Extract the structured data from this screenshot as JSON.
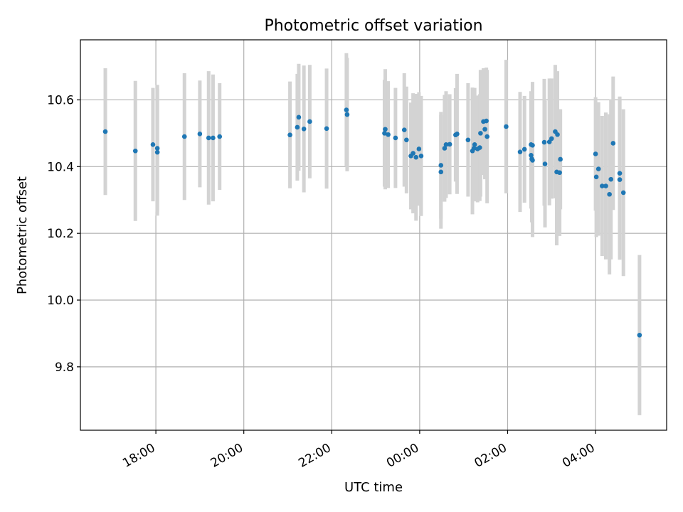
{
  "colors": {
    "point": "#1f77b4",
    "errorbar": "#d3d3d3",
    "grid": "#b0b0b0",
    "axis": "#000000"
  },
  "chart_data": {
    "type": "scatter",
    "title": "Photometric offset variation",
    "xlabel": "UTC time",
    "ylabel": "Photometric offset",
    "grid": true,
    "legend": "none",
    "x_unit": "UTC time (HH:MM)",
    "xlim": [
      "16:17",
      "05:37"
    ],
    "ylim": [
      9.61,
      10.78
    ],
    "x_ticks": [
      "18:00",
      "20:00",
      "22:00",
      "00:00",
      "02:00",
      "04:00"
    ],
    "y_ticks": [
      9.8,
      10.0,
      10.2,
      10.4,
      10.6
    ],
    "y_tick_labels": [
      "9.8",
      "10.0",
      "10.2",
      "10.4",
      "10.6"
    ],
    "series": [
      {
        "x": [
          "16:51",
          "17:32",
          "17:56",
          "18:02",
          "18:02",
          "18:39",
          "19:00",
          "19:12",
          "19:18",
          "19:27",
          "21:03",
          "21:13",
          "21:15",
          "21:22",
          "21:30",
          "21:53",
          "22:20",
          "22:21",
          "23:12",
          "23:13",
          "23:17",
          "23:27",
          "23:39",
          "23:42",
          "23:48",
          "23:51",
          "23:55",
          "23:59",
          "00:02",
          "00:29",
          "00:29",
          "00:34",
          "00:36",
          "00:41",
          "00:49",
          "00:51",
          "01:06",
          "01:12",
          "01:14",
          "01:15",
          "01:19",
          "01:22",
          "01:23",
          "01:27",
          "01:29",
          "01:31",
          "01:32",
          "01:58",
          "02:17",
          "02:23",
          "02:32",
          "02:32",
          "02:33",
          "02:34",
          "02:34",
          "02:50",
          "02:51",
          "02:57",
          "03:00",
          "03:05",
          "03:07",
          "03:08",
          "03:11",
          "03:12",
          "04:00",
          "04:01",
          "04:04",
          "04:09",
          "04:14",
          "04:19",
          "04:21",
          "04:24",
          "04:33",
          "04:33",
          "04:38",
          "05:00"
        ],
        "y": [
          10.505,
          10.447,
          10.466,
          10.455,
          10.443,
          10.49,
          10.498,
          10.486,
          10.486,
          10.49,
          10.495,
          10.518,
          10.548,
          10.513,
          10.535,
          10.514,
          10.57,
          10.556,
          10.5,
          10.512,
          10.496,
          10.486,
          10.51,
          10.48,
          10.432,
          10.44,
          10.428,
          10.453,
          10.432,
          10.404,
          10.384,
          10.455,
          10.466,
          10.467,
          10.495,
          10.498,
          10.48,
          10.447,
          10.455,
          10.466,
          10.453,
          10.457,
          10.5,
          10.535,
          10.512,
          10.537,
          10.49,
          10.52,
          10.444,
          10.452,
          10.466,
          10.434,
          10.423,
          10.419,
          10.464,
          10.473,
          10.408,
          10.474,
          10.484,
          10.505,
          10.384,
          10.496,
          10.382,
          10.422,
          10.438,
          10.369,
          10.393,
          10.342,
          10.342,
          10.317,
          10.362,
          10.47,
          10.38,
          10.361,
          10.322,
          9.895
        ],
        "yerr": [
          0.19,
          0.21,
          0.17,
          0.19,
          0.19,
          0.19,
          0.16,
          0.2,
          0.19,
          0.16,
          0.16,
          0.16,
          0.16,
          0.19,
          0.17,
          0.18,
          0.17,
          0.17,
          0.16,
          0.18,
          0.16,
          0.15,
          0.17,
          0.16,
          0.16,
          0.18,
          0.19,
          0.17,
          0.18,
          0.16,
          0.17,
          0.16,
          0.16,
          0.15,
          0.14,
          0.18,
          0.17,
          0.19,
          0.15,
          0.17,
          0.16,
          0.16,
          0.19,
          0.16,
          0.15,
          0.16,
          0.2,
          0.2,
          0.18,
          0.16,
          0.16,
          0.16,
          0.19,
          0.23,
          0.19,
          0.19,
          0.19,
          0.19,
          0.18,
          0.2,
          0.22,
          0.19,
          0.19,
          0.15,
          0.17,
          0.18,
          0.2,
          0.21,
          0.22,
          0.24,
          0.24,
          0.2,
          0.23,
          0.24,
          0.25,
          0.24
        ]
      }
    ]
  }
}
